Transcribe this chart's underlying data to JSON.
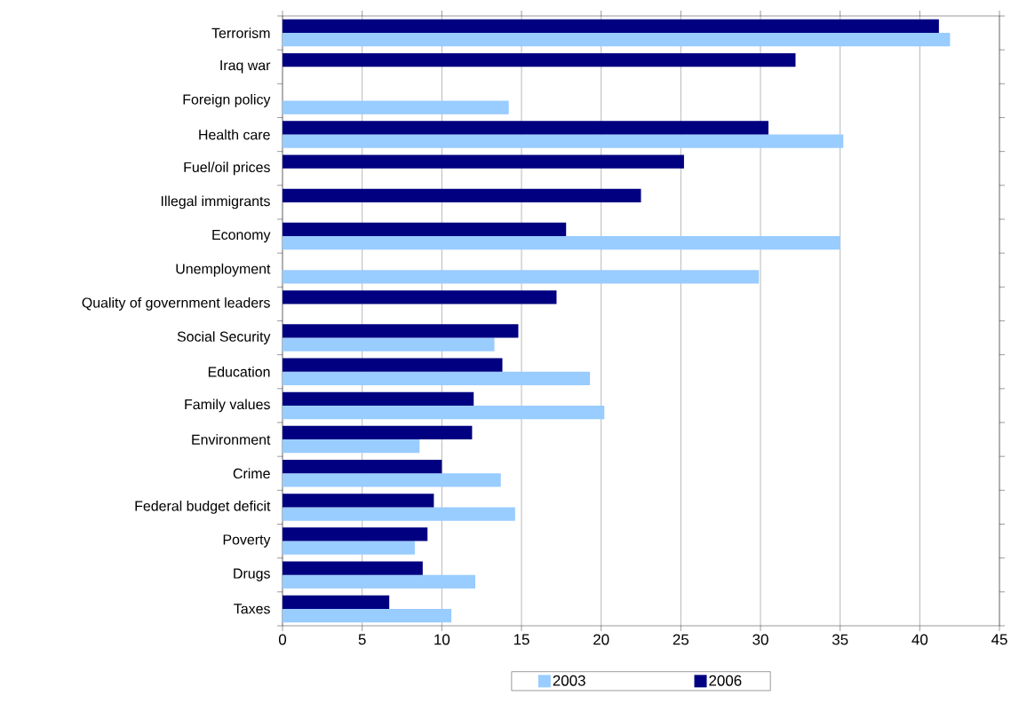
{
  "chart_data": {
    "type": "bar",
    "orientation": "horizontal",
    "categories": [
      "Terrorism",
      "Iraq war",
      "Foreign policy",
      "Health care",
      "Fuel/oil prices",
      "Illegal immigrants",
      "Economy",
      "Unemployment",
      "Quality of government leaders",
      "Social Security",
      "Education",
      "Family values",
      "Environment",
      "Crime",
      "Federal budget deficit",
      "Poverty",
      "Drugs",
      "Taxes"
    ],
    "series": [
      {
        "name": "2003",
        "color": "#99ccff",
        "values": [
          41.9,
          null,
          14.2,
          35.2,
          null,
          null,
          35.0,
          29.9,
          null,
          13.3,
          19.3,
          20.2,
          8.6,
          13.7,
          14.6,
          8.3,
          12.1,
          10.6
        ]
      },
      {
        "name": "2006",
        "color": "#000080",
        "values": [
          41.2,
          32.2,
          null,
          30.5,
          25.2,
          22.5,
          17.8,
          null,
          17.2,
          14.8,
          13.8,
          12.0,
          11.9,
          10.0,
          9.5,
          9.1,
          8.8,
          6.7
        ]
      }
    ],
    "xlim": [
      0,
      45
    ],
    "xticks": [
      0,
      5,
      10,
      15,
      20,
      25,
      30,
      35,
      40,
      45
    ],
    "grid": "x",
    "legend": "bottom"
  }
}
